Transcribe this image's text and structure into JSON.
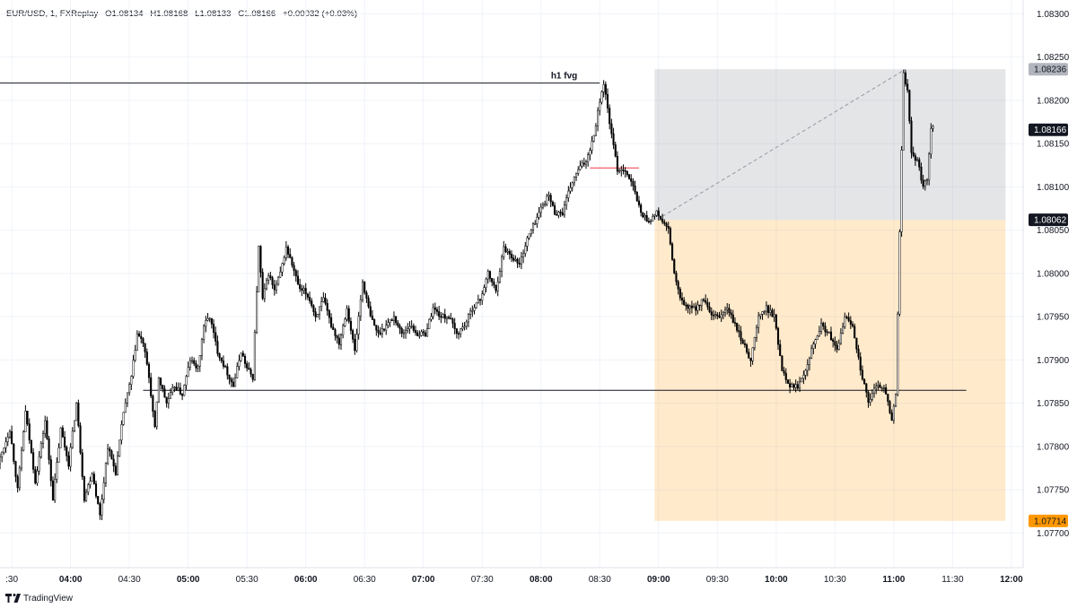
{
  "header": {
    "symbol": "EUR/USD, 1, FXReplay",
    "open": "O1.08134",
    "high": "H1.08168",
    "low": "L1.08133",
    "close": "C1.08166",
    "change": "+0.00032 (+0.03%)"
  },
  "footer": {
    "brand": "TradingView",
    "logo_icon": "tradingview-logo-icon"
  },
  "colors": {
    "candle_body": "#000000",
    "candle_wick": "#000000",
    "grid": "#f0f3fa",
    "stop_zone": "rgba(120,123,134,0.2)",
    "target_zone": "rgba(255,152,0,0.2)",
    "last_price_tag": "#131722",
    "target_tag": "#ff9800",
    "stop_tag": "#b2b5be"
  },
  "chart_data": {
    "type": "candlestick",
    "title": "",
    "xlabel": "",
    "ylabel": "",
    "ylim": [
      1.0766,
      1.08316
    ],
    "xlim": [
      "03:24",
      "12:06"
    ],
    "grid": true,
    "x_ticks": [
      {
        "label": ":30",
        "time": "03:30",
        "bold": false
      },
      {
        "label": "04:00",
        "time": "04:00",
        "bold": true
      },
      {
        "label": "04:30",
        "time": "04:30",
        "bold": false
      },
      {
        "label": "05:00",
        "time": "05:00",
        "bold": true
      },
      {
        "label": "05:30",
        "time": "05:30",
        "bold": false
      },
      {
        "label": "06:00",
        "time": "06:00",
        "bold": true
      },
      {
        "label": "06:30",
        "time": "06:30",
        "bold": false
      },
      {
        "label": "07:00",
        "time": "07:00",
        "bold": true
      },
      {
        "label": "07:30",
        "time": "07:30",
        "bold": false
      },
      {
        "label": "08:00",
        "time": "08:00",
        "bold": true
      },
      {
        "label": "08:30",
        "time": "08:30",
        "bold": false
      },
      {
        "label": "09:00",
        "time": "09:00",
        "bold": true
      },
      {
        "label": "09:30",
        "time": "09:30",
        "bold": false
      },
      {
        "label": "10:00",
        "time": "10:00",
        "bold": true
      },
      {
        "label": "10:30",
        "time": "10:30",
        "bold": false
      },
      {
        "label": "11:00",
        "time": "11:00",
        "bold": true
      },
      {
        "label": "11:30",
        "time": "11:30",
        "bold": false
      },
      {
        "label": "12:00",
        "time": "12:00",
        "bold": true
      }
    ],
    "y_ticks": [
      "1.08300",
      "1.08250",
      "1.08200",
      "1.08150",
      "1.08100",
      "1.08050",
      "1.08000",
      "1.07950",
      "1.07900",
      "1.07850",
      "1.07800",
      "1.07750",
      "1.07700"
    ],
    "price_tags": [
      {
        "label": "1.08236",
        "value": 1.08236,
        "role": "stop"
      },
      {
        "label": "1.08166",
        "value": 1.08166,
        "role": "last"
      },
      {
        "label": "1.08062",
        "value": 1.08062,
        "role": "entry"
      },
      {
        "label": "1.07714",
        "value": 1.07714,
        "role": "target"
      }
    ],
    "annotations": [
      {
        "type": "hline",
        "label": "h1 fvg",
        "value": 1.0822,
        "start": "03:24",
        "end": "08:30"
      },
      {
        "type": "hline",
        "label": "",
        "value": 1.07865,
        "start": "04:37",
        "end": "11:37"
      },
      {
        "type": "short-position",
        "start": "08:58",
        "end": "11:57",
        "entry": 1.08062,
        "stop": 1.08236,
        "target": 1.07714
      },
      {
        "type": "red-segment",
        "start": "08:25",
        "end": "08:50",
        "value": 1.08122
      },
      {
        "type": "dashed-line",
        "start": [
          "09:02",
          1.08066
        ],
        "end": [
          "11:06",
          1.08236
        ]
      }
    ],
    "series": [
      {
        "path_points": [
          [
            "03:24",
            1.0778
          ],
          [
            "03:30",
            1.0782
          ],
          [
            "03:34",
            1.0775
          ],
          [
            "03:38",
            1.0784
          ],
          [
            "03:43",
            1.0776
          ],
          [
            "03:48",
            1.0783
          ],
          [
            "03:52",
            1.0774
          ],
          [
            "03:56",
            1.0782
          ],
          [
            "04:00",
            1.0778
          ],
          [
            "04:04",
            1.0785
          ],
          [
            "04:08",
            1.0774
          ],
          [
            "04:12",
            1.0777
          ],
          [
            "04:16",
            1.0772
          ],
          [
            "04:20",
            1.078
          ],
          [
            "04:24",
            1.0777
          ],
          [
            "04:28",
            1.0784
          ],
          [
            "04:32",
            1.0788
          ],
          [
            "04:35",
            1.0793
          ],
          [
            "04:38",
            1.0792
          ],
          [
            "04:41",
            1.0788
          ],
          [
            "04:44",
            1.0782
          ],
          [
            "04:46",
            1.0788
          ],
          [
            "04:50",
            1.0785
          ],
          [
            "04:54",
            1.0787
          ],
          [
            "04:58",
            1.0786
          ],
          [
            "05:02",
            1.079
          ],
          [
            "05:06",
            1.0789
          ],
          [
            "05:09",
            1.0794
          ],
          [
            "05:12",
            1.0795
          ],
          [
            "05:16",
            1.0791
          ],
          [
            "05:20",
            1.0789
          ],
          [
            "05:24",
            1.0787
          ],
          [
            "05:28",
            1.0791
          ],
          [
            "05:31",
            1.0789
          ],
          [
            "05:34",
            1.0788
          ],
          [
            "05:37",
            1.0803
          ],
          [
            "05:39",
            1.0797
          ],
          [
            "05:42",
            1.08
          ],
          [
            "05:45",
            1.0798
          ],
          [
            "05:48",
            1.08
          ],
          [
            "05:51",
            1.0803
          ],
          [
            "05:54",
            1.0801
          ],
          [
            "05:58",
            1.0798
          ],
          [
            "06:00",
            1.0798
          ],
          [
            "06:03",
            1.0797
          ],
          [
            "06:06",
            1.0795
          ],
          [
            "06:10",
            1.0797
          ],
          [
            "06:14",
            1.0794
          ],
          [
            "06:18",
            1.0792
          ],
          [
            "06:22",
            1.0796
          ],
          [
            "06:26",
            1.0791
          ],
          [
            "06:30",
            1.0799
          ],
          [
            "06:34",
            1.0795
          ],
          [
            "06:38",
            1.0793
          ],
          [
            "06:42",
            1.0794
          ],
          [
            "06:46",
            1.0795
          ],
          [
            "06:50",
            1.0793
          ],
          [
            "06:54",
            1.0794
          ],
          [
            "06:58",
            1.0793
          ],
          [
            "07:02",
            1.0793
          ],
          [
            "07:06",
            1.0796
          ],
          [
            "07:10",
            1.0795
          ],
          [
            "07:14",
            1.0795
          ],
          [
            "07:18",
            1.0793
          ],
          [
            "07:22",
            1.0794
          ],
          [
            "07:26",
            1.0796
          ],
          [
            "07:30",
            1.0797
          ],
          [
            "07:34",
            1.08
          ],
          [
            "07:38",
            1.0798
          ],
          [
            "07:42",
            1.0803
          ],
          [
            "07:46",
            1.0802
          ],
          [
            "07:50",
            1.0801
          ],
          [
            "07:54",
            1.0804
          ],
          [
            "07:58",
            1.0806
          ],
          [
            "08:02",
            1.0808
          ],
          [
            "08:05",
            1.0809
          ],
          [
            "08:08",
            1.0807
          ],
          [
            "08:12",
            1.0807
          ],
          [
            "08:16",
            1.081
          ],
          [
            "08:20",
            1.0812
          ],
          [
            "08:24",
            1.0813
          ],
          [
            "08:28",
            1.0816
          ],
          [
            "08:31",
            1.082
          ],
          [
            "08:33",
            1.0822
          ],
          [
            "08:35",
            1.0819
          ],
          [
            "08:37",
            1.0816
          ],
          [
            "08:40",
            1.0812
          ],
          [
            "08:44",
            1.0812
          ],
          [
            "08:48",
            1.081
          ],
          [
            "08:52",
            1.0807
          ],
          [
            "08:56",
            1.0806
          ],
          [
            "09:00",
            1.0807
          ],
          [
            "09:03",
            1.0806
          ],
          [
            "09:06",
            1.0805
          ],
          [
            "09:09",
            1.08
          ],
          [
            "09:12",
            1.0797
          ],
          [
            "09:16",
            1.0796
          ],
          [
            "09:20",
            1.0796
          ],
          [
            "09:24",
            1.0797
          ],
          [
            "09:28",
            1.0795
          ],
          [
            "09:32",
            1.0795
          ],
          [
            "09:36",
            1.0796
          ],
          [
            "09:40",
            1.0794
          ],
          [
            "09:44",
            1.0792
          ],
          [
            "09:48",
            1.079
          ],
          [
            "09:52",
            1.0795
          ],
          [
            "09:56",
            1.0796
          ],
          [
            "10:00",
            1.0795
          ],
          [
            "10:04",
            1.0789
          ],
          [
            "10:08",
            1.0787
          ],
          [
            "10:12",
            1.0787
          ],
          [
            "10:16",
            1.0789
          ],
          [
            "10:20",
            1.0792
          ],
          [
            "10:24",
            1.0794
          ],
          [
            "10:28",
            1.0793
          ],
          [
            "10:32",
            1.0791
          ],
          [
            "10:36",
            1.0795
          ],
          [
            "10:40",
            1.0794
          ],
          [
            "10:44",
            1.0789
          ],
          [
            "10:48",
            1.0785
          ],
          [
            "10:52",
            1.0787
          ],
          [
            "10:56",
            1.0787
          ],
          [
            "11:00",
            1.0783
          ],
          [
            "11:02",
            1.0786
          ],
          [
            "11:04",
            1.0805
          ],
          [
            "11:06",
            1.0823
          ],
          [
            "11:08",
            1.0821
          ],
          [
            "11:10",
            1.0814
          ],
          [
            "11:13",
            1.0813
          ],
          [
            "11:16",
            1.081
          ],
          [
            "11:18",
            1.0811
          ],
          [
            "11:20",
            1.0817
          ]
        ]
      }
    ]
  }
}
